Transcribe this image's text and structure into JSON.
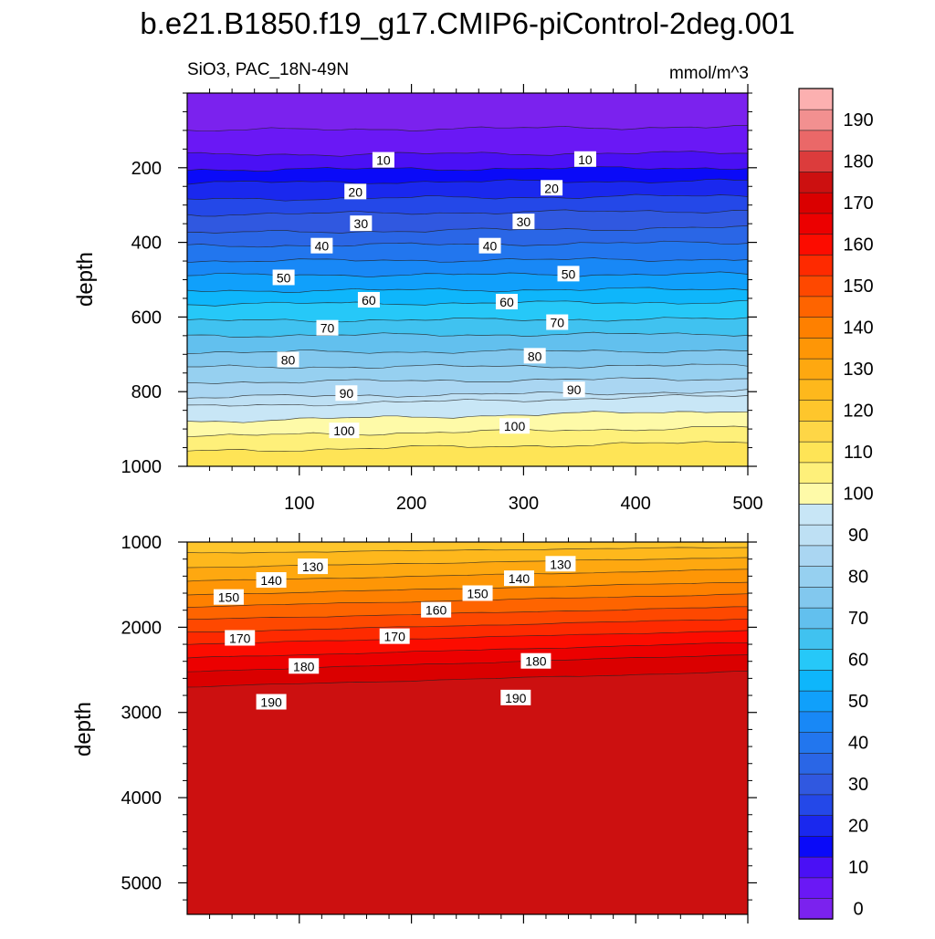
{
  "chart_data": {
    "type": "contour",
    "title": "b.e21.B1850.f19_g17.CMIP6-piControl-2deg.001",
    "variable": "SiO3, PAC_18N-49N",
    "units": "mmol/m^3",
    "ylabel": "depth",
    "contour_interval": 5,
    "colorbar": {
      "levels": [
        0,
        5,
        10,
        15,
        20,
        25,
        30,
        35,
        40,
        45,
        50,
        55,
        60,
        65,
        70,
        75,
        80,
        85,
        90,
        95,
        100,
        105,
        110,
        115,
        120,
        125,
        130,
        135,
        140,
        145,
        150,
        155,
        160,
        165,
        170,
        175,
        180,
        185,
        190,
        195
      ],
      "tick_labels": [
        "0",
        "10",
        "20",
        "30",
        "40",
        "50",
        "60",
        "70",
        "80",
        "90",
        "100",
        "110",
        "120",
        "130",
        "140",
        "150",
        "160",
        "170",
        "180",
        "190"
      ],
      "colors": [
        "#7b22ee",
        "#6a18f5",
        "#4a10f5",
        "#0a0af8",
        "#1a28ee",
        "#2448e8",
        "#3058e0",
        "#2a66e6",
        "#2276ee",
        "#1888f6",
        "#10a0fb",
        "#0eb6fb",
        "#26c8f8",
        "#40c2f0",
        "#62c0ee",
        "#82c8ee",
        "#96d0f0",
        "#aad6f2",
        "#bee0f4",
        "#c8e6f6",
        "#fefaa8",
        "#fef07a",
        "#fee456",
        "#fed646",
        "#fec62c",
        "#feb81c",
        "#fea810",
        "#fe9606",
        "#fe8000",
        "#fe6400",
        "#fe4800",
        "#fe2a00",
        "#fc0c00",
        "#ec0000",
        "#da0000",
        "#cc1010",
        "#dc3c3c",
        "#ea6868",
        "#f29090",
        "#fcb0b0"
      ]
    },
    "panels": [
      {
        "name": "upper",
        "xlim": [
          0,
          500
        ],
        "ylim": [
          1000,
          0
        ],
        "yticks": [
          200,
          400,
          600,
          800,
          1000
        ],
        "ytick_labels": [
          "200",
          "400",
          "600",
          "800",
          "1000"
        ],
        "xticks": [
          100,
          200,
          300,
          400,
          500
        ],
        "xtick_labels": [
          "100",
          "200",
          "300",
          "400",
          "500"
        ],
        "depth_of_value_west": [
          [
            5,
            100
          ],
          [
            10,
            165
          ],
          [
            15,
            205
          ],
          [
            20,
            240
          ],
          [
            25,
            285
          ],
          [
            30,
            325
          ],
          [
            35,
            375
          ],
          [
            40,
            410
          ],
          [
            45,
            450
          ],
          [
            50,
            488
          ],
          [
            55,
            530
          ],
          [
            60,
            565
          ],
          [
            65,
            610
          ],
          [
            70,
            650
          ],
          [
            75,
            695
          ],
          [
            80,
            735
          ],
          [
            85,
            775
          ],
          [
            90,
            815
          ],
          [
            95,
            840
          ],
          [
            100,
            880
          ],
          [
            105,
            920
          ],
          [
            110,
            960
          ],
          [
            115,
            1005
          ]
        ],
        "depth_of_value_east": [
          [
            5,
            90
          ],
          [
            10,
            160
          ],
          [
            15,
            200
          ],
          [
            20,
            235
          ],
          [
            25,
            275
          ],
          [
            30,
            315
          ],
          [
            35,
            360
          ],
          [
            40,
            400
          ],
          [
            45,
            445
          ],
          [
            50,
            485
          ],
          [
            55,
            525
          ],
          [
            60,
            560
          ],
          [
            65,
            605
          ],
          [
            70,
            645
          ],
          [
            75,
            690
          ],
          [
            80,
            730
          ],
          [
            85,
            765
          ],
          [
            90,
            800
          ],
          [
            95,
            810
          ],
          [
            100,
            850
          ],
          [
            105,
            895
          ],
          [
            110,
            935
          ],
          [
            115,
            985
          ]
        ],
        "contour_labels": [
          {
            "text": "10",
            "x": 175,
            "depth": 180
          },
          {
            "text": "10",
            "x": 355,
            "depth": 178
          },
          {
            "text": "20",
            "x": 150,
            "depth": 265
          },
          {
            "text": "20",
            "x": 325,
            "depth": 255
          },
          {
            "text": "30",
            "x": 155,
            "depth": 350
          },
          {
            "text": "30",
            "x": 300,
            "depth": 345
          },
          {
            "text": "40",
            "x": 120,
            "depth": 410
          },
          {
            "text": "40",
            "x": 270,
            "depth": 410
          },
          {
            "text": "50",
            "x": 86,
            "depth": 495
          },
          {
            "text": "50",
            "x": 340,
            "depth": 485
          },
          {
            "text": "60",
            "x": 162,
            "depth": 555
          },
          {
            "text": "60",
            "x": 285,
            "depth": 560
          },
          {
            "text": "70",
            "x": 125,
            "depth": 630
          },
          {
            "text": "70",
            "x": 330,
            "depth": 615
          },
          {
            "text": "80",
            "x": 90,
            "depth": 715
          },
          {
            "text": "80",
            "x": 310,
            "depth": 705
          },
          {
            "text": "90",
            "x": 142,
            "depth": 805
          },
          {
            "text": "90",
            "x": 345,
            "depth": 795
          },
          {
            "text": "100",
            "x": 140,
            "depth": 905
          },
          {
            "text": "100",
            "x": 292,
            "depth": 893
          }
        ]
      },
      {
        "name": "lower",
        "xlim": [
          0,
          500
        ],
        "ylim": [
          5370,
          1000
        ],
        "yticks": [
          1000,
          2000,
          3000,
          4000,
          5000
        ],
        "ytick_labels": [
          "1000",
          "2000",
          "3000",
          "4000",
          "5000"
        ],
        "depth_of_value_west": [
          [
            120,
            980
          ],
          [
            125,
            1130
          ],
          [
            130,
            1300
          ],
          [
            135,
            1460
          ],
          [
            140,
            1620
          ],
          [
            145,
            1760
          ],
          [
            150,
            1910
          ],
          [
            155,
            2060
          ],
          [
            160,
            2200
          ],
          [
            165,
            2360
          ],
          [
            170,
            2520
          ],
          [
            175,
            2700
          ],
          [
            180,
            2940
          ]
        ],
        "depth_of_value_east": [
          [
            120,
            985
          ],
          [
            125,
            1060
          ],
          [
            130,
            1180
          ],
          [
            135,
            1320
          ],
          [
            140,
            1470
          ],
          [
            145,
            1610
          ],
          [
            150,
            1760
          ],
          [
            155,
            1900
          ],
          [
            160,
            2040
          ],
          [
            165,
            2180
          ],
          [
            170,
            2320
          ],
          [
            175,
            2520
          ],
          [
            180,
            2750
          ]
        ],
        "contour_labels": [
          {
            "text": "130",
            "x": 112,
            "depth": 1290
          },
          {
            "text": "130",
            "x": 333,
            "depth": 1260
          },
          {
            "text": "140",
            "x": 75,
            "depth": 1450
          },
          {
            "text": "140",
            "x": 296,
            "depth": 1430
          },
          {
            "text": "150",
            "x": 37,
            "depth": 1650
          },
          {
            "text": "150",
            "x": 259,
            "depth": 1605
          },
          {
            "text": "160",
            "x": 222,
            "depth": 1800
          },
          {
            "text": "170",
            "x": 47,
            "depth": 2130
          },
          {
            "text": "170",
            "x": 185,
            "depth": 2110
          },
          {
            "text": "180",
            "x": 104,
            "depth": 2460
          },
          {
            "text": "180",
            "x": 311,
            "depth": 2400
          },
          {
            "text": "190",
            "x": 75,
            "depth": 2880
          },
          {
            "text": "190",
            "x": 293,
            "depth": 2830
          }
        ]
      }
    ]
  }
}
